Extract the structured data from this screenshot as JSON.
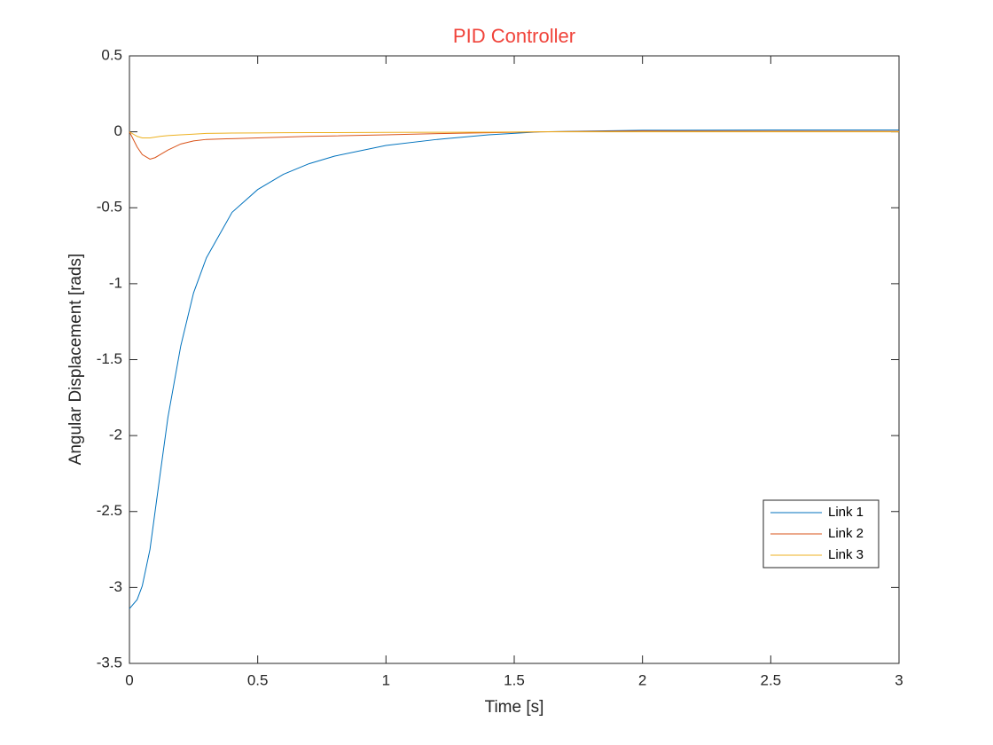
{
  "chart_data": {
    "type": "line",
    "title": "PID Controller",
    "x_label": "Time [s]",
    "y_label": "Angular Displacement [rads]",
    "x": [
      0,
      0.03,
      0.05,
      0.08,
      0.1,
      0.12,
      0.15,
      0.2,
      0.25,
      0.3,
      0.4,
      0.5,
      0.6,
      0.7,
      0.8,
      1.0,
      1.2,
      1.4,
      1.6,
      1.8,
      2.0,
      2.5,
      3.0
    ],
    "series": [
      {
        "name": "Link 1",
        "color": "#0072bd",
        "values": [
          -3.14,
          -3.08,
          -2.99,
          -2.75,
          -2.5,
          -2.25,
          -1.88,
          -1.41,
          -1.06,
          -0.83,
          -0.53,
          -0.38,
          -0.28,
          -0.21,
          -0.16,
          -0.09,
          -0.05,
          -0.02,
          0,
          0.005,
          0.01,
          0.012,
          0.012
        ]
      },
      {
        "name": "Link 2",
        "color": "#d95319",
        "values": [
          0,
          -0.1,
          -0.15,
          -0.18,
          -0.17,
          -0.15,
          -0.12,
          -0.08,
          -0.06,
          -0.05,
          -0.045,
          -0.04,
          -0.035,
          -0.03,
          -0.027,
          -0.02,
          -0.012,
          -0.006,
          0,
          0.003,
          0.005,
          0.004,
          0.003
        ]
      },
      {
        "name": "Link 3",
        "color": "#edb120",
        "values": [
          0,
          -0.03,
          -0.04,
          -0.04,
          -0.035,
          -0.03,
          -0.025,
          -0.02,
          -0.015,
          -0.01,
          -0.008,
          -0.007,
          -0.006,
          -0.005,
          -0.005,
          -0.004,
          -0.003,
          -0.002,
          0,
          0,
          0,
          0,
          0
        ]
      }
    ],
    "xlim": [
      0,
      3
    ],
    "xticks": [
      0,
      0.5,
      1,
      1.5,
      2,
      2.5,
      3
    ],
    "ylim": [
      -3.5,
      0.5
    ],
    "yticks": [
      -3.5,
      -3,
      -2.5,
      -2,
      -1.5,
      -1,
      -0.5,
      0,
      0.5
    ],
    "grid": false,
    "legend": "southeast"
  }
}
